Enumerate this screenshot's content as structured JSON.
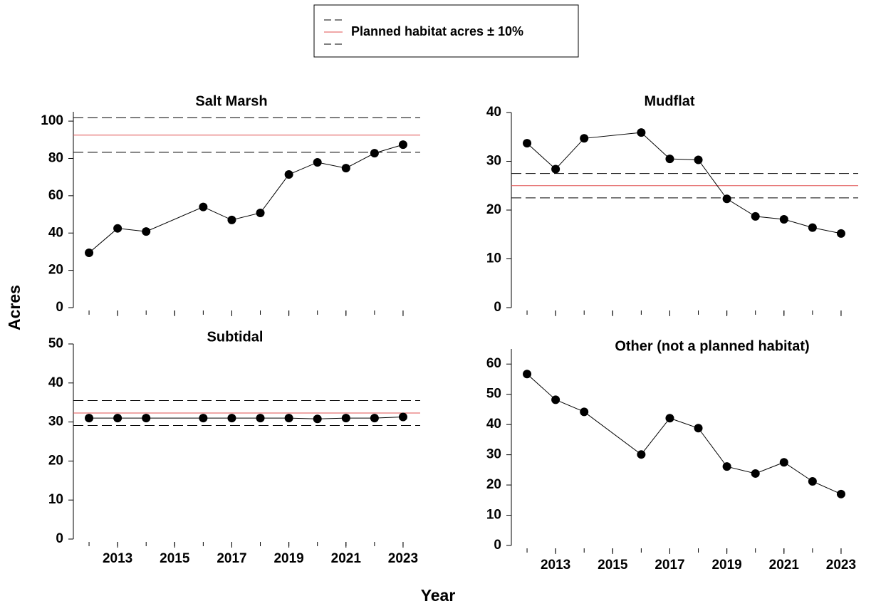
{
  "figure": {
    "legend": "Planned habitat acres ± 10%",
    "xlabel": "Year",
    "ylabel": "Acres"
  },
  "chart_data": [
    {
      "type": "line",
      "title": "Salt Marsh",
      "x": [
        2012,
        2013,
        2014,
        2016,
        2017,
        2018,
        2019,
        2020,
        2021,
        2022,
        2023
      ],
      "series": [
        {
          "color": "#000000",
          "values": [
            29.4,
            42.5,
            40.8,
            54,
            47,
            50.8,
            71.4,
            77.9,
            74.8,
            82.8,
            87.4
          ]
        }
      ],
      "reference_lines": [
        {
          "value": 101.8,
          "style": "dashed",
          "color": "#000000"
        },
        {
          "value": 92.5,
          "style": "solid",
          "color": "#e05050"
        },
        {
          "value": 83.3,
          "style": "dashed",
          "color": "#000000"
        }
      ],
      "xlim": [
        2011.45,
        2023.6
      ],
      "xticks": [
        2013,
        2015,
        2017,
        2019,
        2021,
        2023
      ],
      "x_minor_ticks": [
        2012,
        2013,
        2014,
        2015,
        2016,
        2017,
        2018,
        2019,
        2020,
        2021,
        2022,
        2023
      ],
      "xtick_labels": false,
      "ylim": [
        0,
        105
      ],
      "yticks": [
        0,
        20,
        40,
        60,
        80,
        100
      ]
    },
    {
      "type": "line",
      "title": "Mudflat",
      "x": [
        2012,
        2013,
        2014,
        2016,
        2017,
        2018,
        2019,
        2020,
        2021,
        2022,
        2023
      ],
      "series": [
        {
          "color": "#000000",
          "values": [
            33.7,
            28.4,
            34.7,
            35.9,
            30.5,
            30.3,
            22.3,
            18.7,
            18.1,
            16.4,
            15.2
          ]
        }
      ],
      "reference_lines": [
        {
          "value": 27.5,
          "style": "dashed",
          "color": "#000000"
        },
        {
          "value": 25,
          "style": "solid",
          "color": "#e05050"
        },
        {
          "value": 22.5,
          "style": "dashed",
          "color": "#000000"
        }
      ],
      "xlim": [
        2011.45,
        2023.6
      ],
      "xticks": [
        2013,
        2015,
        2017,
        2019,
        2021,
        2023
      ],
      "x_minor_ticks": [
        2012,
        2013,
        2014,
        2015,
        2016,
        2017,
        2018,
        2019,
        2020,
        2021,
        2022,
        2023
      ],
      "xtick_labels": false,
      "ylim": [
        0,
        40
      ],
      "yticks": [
        0,
        10,
        20,
        30,
        40
      ]
    },
    {
      "type": "line",
      "title": "Subtidal",
      "x": [
        2012,
        2013,
        2014,
        2016,
        2017,
        2018,
        2019,
        2020,
        2021,
        2022,
        2023
      ],
      "series": [
        {
          "color": "#000000",
          "values": [
            31,
            31,
            31,
            31,
            31,
            31,
            31,
            30.8,
            31,
            31,
            31.3
          ]
        }
      ],
      "reference_lines": [
        {
          "value": 35.5,
          "style": "dashed",
          "color": "#000000"
        },
        {
          "value": 32.3,
          "style": "solid",
          "color": "#e05050"
        },
        {
          "value": 29.1,
          "style": "dashed",
          "color": "#000000"
        }
      ],
      "xlim": [
        2011.45,
        2023.6
      ],
      "xticks": [
        2013,
        2015,
        2017,
        2019,
        2021,
        2023
      ],
      "x_minor_ticks": [
        2012,
        2013,
        2014,
        2015,
        2016,
        2017,
        2018,
        2019,
        2020,
        2021,
        2022,
        2023
      ],
      "xtick_labels": true,
      "ylim": [
        0,
        50
      ],
      "yticks": [
        0,
        10,
        20,
        30,
        40,
        50
      ]
    },
    {
      "type": "line",
      "title": "Other (not a planned habitat)",
      "x": [
        2012,
        2013,
        2014,
        2016,
        2017,
        2018,
        2019,
        2020,
        2021,
        2022,
        2023
      ],
      "series": [
        {
          "color": "#000000",
          "values": [
            56.7,
            48.2,
            44.2,
            30.1,
            42.1,
            38.8,
            26.1,
            23.8,
            27.5,
            21.2,
            17
          ]
        }
      ],
      "xlim": [
        2011.45,
        2023.6
      ],
      "xticks": [
        2013,
        2015,
        2017,
        2019,
        2021,
        2023
      ],
      "x_minor_ticks": [
        2012,
        2013,
        2014,
        2015,
        2016,
        2017,
        2018,
        2019,
        2020,
        2021,
        2022,
        2023
      ],
      "xtick_labels": true,
      "ylim": [
        0,
        65
      ],
      "yticks": [
        0,
        10,
        20,
        30,
        40,
        50,
        60
      ]
    }
  ]
}
